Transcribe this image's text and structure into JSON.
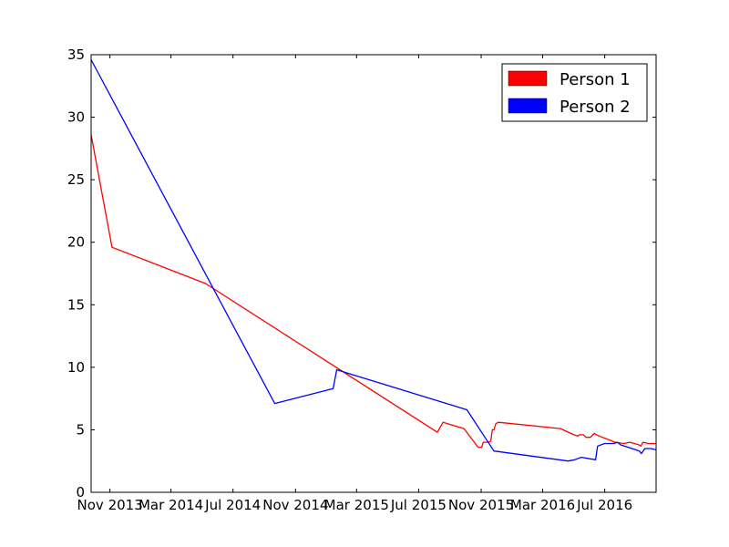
{
  "chart_data": {
    "type": "line",
    "title": "",
    "xlabel": "",
    "ylabel": "",
    "x_ticks": [
      "Nov 2013",
      "Mar 2014",
      "Jul 2014",
      "Nov 2014",
      "Mar 2015",
      "Jul 2015",
      "Nov 2015",
      "Mar 2016",
      "Jul 2016"
    ],
    "x_tick_dates": [
      "2013-11-01",
      "2014-03-01",
      "2014-07-01",
      "2014-11-01",
      "2015-03-01",
      "2015-07-01",
      "2015-11-01",
      "2016-03-01",
      "2016-07-01"
    ],
    "xlim": [
      "2013-09-25",
      "2016-10-10"
    ],
    "y_ticks": [
      "0",
      "5",
      "10",
      "15",
      "20",
      "25",
      "30",
      "35"
    ],
    "ylim": [
      0,
      35
    ],
    "grid": false,
    "legend": {
      "placement": "top-right",
      "entries": [
        {
          "label": "Person 1",
          "color": "#ff0000"
        },
        {
          "label": "Person 2",
          "color": "#0000ff"
        }
      ]
    },
    "series": [
      {
        "name": "Person 1",
        "color": "#ff0000",
        "points": [
          [
            "2013-09-25",
            28.6
          ],
          [
            "2013-11-05",
            19.6
          ],
          [
            "2014-05-08",
            16.7
          ],
          [
            "2015-08-07",
            4.8
          ],
          [
            "2015-08-18",
            5.6
          ],
          [
            "2015-09-28",
            5.1
          ],
          [
            "2015-10-26",
            3.6
          ],
          [
            "2015-11-02",
            3.6
          ],
          [
            "2015-11-05",
            4.0
          ],
          [
            "2015-11-16",
            4.0
          ],
          [
            "2015-11-20",
            4.1
          ],
          [
            "2015-11-23",
            5.0
          ],
          [
            "2015-11-26",
            5.0
          ],
          [
            "2015-11-30",
            5.5
          ],
          [
            "2015-12-05",
            5.6
          ],
          [
            "2016-04-05",
            5.1
          ],
          [
            "2016-05-01",
            4.6
          ],
          [
            "2016-05-09",
            4.5
          ],
          [
            "2016-05-12",
            4.6
          ],
          [
            "2016-05-20",
            4.6
          ],
          [
            "2016-05-25",
            4.4
          ],
          [
            "2016-06-03",
            4.4
          ],
          [
            "2016-06-10",
            4.7
          ],
          [
            "2016-06-20",
            4.5
          ],
          [
            "2016-07-09",
            4.2
          ],
          [
            "2016-07-21",
            4.0
          ],
          [
            "2016-08-08",
            3.9
          ],
          [
            "2016-08-19",
            4.0
          ],
          [
            "2016-09-06",
            3.8
          ],
          [
            "2016-09-10",
            3.7
          ],
          [
            "2016-09-14",
            4.0
          ],
          [
            "2016-09-25",
            3.9
          ],
          [
            "2016-10-10",
            3.9
          ]
        ]
      },
      {
        "name": "Person 2",
        "color": "#0000ff",
        "points": [
          [
            "2013-09-25",
            34.6
          ],
          [
            "2014-09-21",
            7.1
          ],
          [
            "2015-01-14",
            8.3
          ],
          [
            "2015-01-21",
            9.8
          ],
          [
            "2015-10-04",
            6.6
          ],
          [
            "2015-11-26",
            3.3
          ],
          [
            "2016-04-20",
            2.5
          ],
          [
            "2016-05-03",
            2.6
          ],
          [
            "2016-05-16",
            2.8
          ],
          [
            "2016-06-13",
            2.6
          ],
          [
            "2016-06-17",
            3.7
          ],
          [
            "2016-07-01",
            3.9
          ],
          [
            "2016-07-19",
            3.9
          ],
          [
            "2016-07-26",
            4.0
          ],
          [
            "2016-08-01",
            3.8
          ],
          [
            "2016-08-31",
            3.4
          ],
          [
            "2016-09-07",
            3.3
          ],
          [
            "2016-09-11",
            3.1
          ],
          [
            "2016-09-18",
            3.5
          ],
          [
            "2016-09-29",
            3.5
          ],
          [
            "2016-10-10",
            3.4
          ]
        ]
      }
    ]
  }
}
